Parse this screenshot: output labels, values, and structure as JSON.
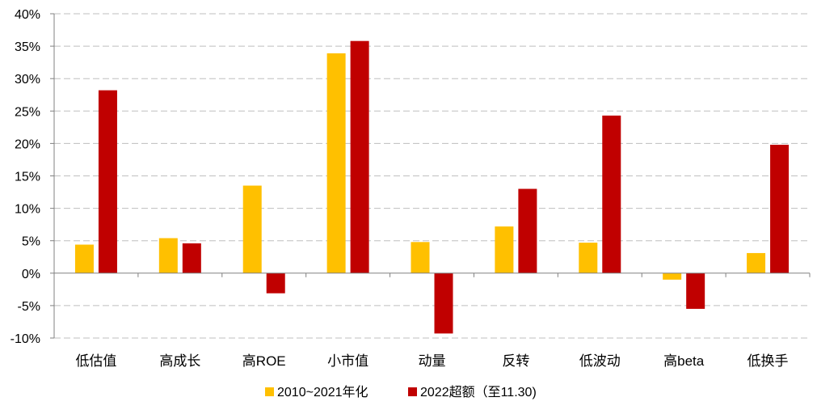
{
  "chart_data": {
    "type": "bar",
    "categories": [
      "低估值",
      "高成长",
      "高ROE",
      "小市值",
      "动量",
      "反转",
      "低波动",
      "高beta",
      "低换手"
    ],
    "series": [
      {
        "name": "2010~2021年化",
        "color": "#FFC000",
        "values": [
          4.4,
          5.4,
          13.5,
          33.9,
          4.8,
          7.2,
          4.7,
          -1.0,
          3.1
        ]
      },
      {
        "name": "2022超额（至11.30)",
        "color": "#C00000",
        "values": [
          28.2,
          4.6,
          -3.1,
          35.8,
          -9.3,
          13.0,
          24.3,
          -5.5,
          19.8
        ]
      }
    ],
    "ylim": [
      -10,
      40
    ],
    "yticks": [
      40,
      35,
      30,
      25,
      20,
      15,
      10,
      5,
      0,
      -5,
      -10
    ],
    "ytick_labels": [
      "40%",
      "35%",
      "30%",
      "25%",
      "20%",
      "15%",
      "10%",
      "5%",
      "0%",
      "-5%",
      "-10%"
    ],
    "grid": true,
    "legend_position": "bottom"
  }
}
